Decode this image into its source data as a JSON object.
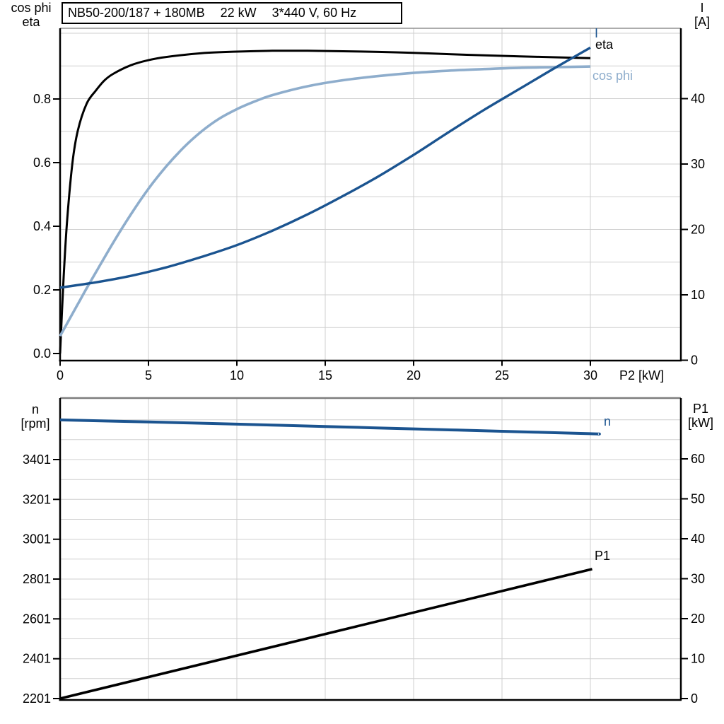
{
  "title": {
    "model": "NB50-200/187 + 180MB",
    "power": "22 kW",
    "supply": "3*440 V, 60 Hz"
  },
  "colors": {
    "black": "#000000",
    "dark_blue": "#1b5490",
    "light_blue": "#8eadcc",
    "grid": "#cfcfcf",
    "axis": "#000000",
    "frame_top": "#858585"
  },
  "chart_data": [
    {
      "type": "line",
      "x_axis": {
        "label": "P2 [kW]",
        "ticks": [
          0,
          5,
          10,
          15,
          20,
          25,
          30
        ],
        "min": 0,
        "max": 35.1,
        "gridline_step": 5
      },
      "left_axis": {
        "label_lines": [
          "cos phi",
          "eta"
        ],
        "ticks": [
          "0.0",
          "0.2",
          "0.4",
          "0.6",
          "0.8"
        ],
        "min": 0,
        "max": 1.02
      },
      "right_axis": {
        "label_lines": [
          "I",
          "[A]"
        ],
        "ticks": [
          0,
          10,
          20,
          30,
          40
        ],
        "min": 0,
        "max": 50.8,
        "gridline_step": 5
      },
      "series": [
        {
          "name": "eta",
          "axis": "left",
          "color_key": "black",
          "x": [
            0,
            0.2,
            0.4,
            0.7,
            1,
            1.5,
            2,
            2.5,
            3,
            4,
            5,
            6,
            8,
            10,
            12,
            14,
            16,
            18,
            20,
            22,
            24,
            26,
            28,
            30
          ],
          "y": [
            0,
            0.24,
            0.42,
            0.6,
            0.7,
            0.785,
            0.825,
            0.858,
            0.879,
            0.906,
            0.922,
            0.932,
            0.944,
            0.949,
            0.9515,
            0.9515,
            0.95,
            0.948,
            0.945,
            0.941,
            0.937,
            0.934,
            0.931,
            0.9285
          ]
        },
        {
          "name": "cos phi",
          "axis": "left",
          "color_key": "light_blue",
          "x": [
            0,
            0.5,
            1,
            1.5,
            2,
            3,
            4,
            5,
            6,
            7,
            8,
            9,
            10,
            11,
            12,
            14,
            16,
            18,
            20,
            22,
            24,
            26,
            28,
            30
          ],
          "y": [
            0.055,
            0.105,
            0.155,
            0.205,
            0.253,
            0.348,
            0.437,
            0.518,
            0.588,
            0.648,
            0.698,
            0.738,
            0.768,
            0.792,
            0.812,
            0.84,
            0.859,
            0.872,
            0.882,
            0.889,
            0.894,
            0.898,
            0.9,
            0.902
          ]
        },
        {
          "name": "I",
          "axis": "right",
          "color_key": "dark_blue",
          "x": [
            0,
            2,
            4,
            6,
            8,
            10,
            12,
            14,
            16,
            18,
            20,
            22,
            24,
            26,
            28,
            30
          ],
          "y": [
            11.1,
            11.9,
            12.9,
            14.2,
            15.8,
            17.6,
            19.8,
            22.3,
            25.1,
            28.1,
            31.4,
            34.9,
            38.3,
            41.5,
            44.7,
            47.8
          ]
        }
      ]
    },
    {
      "type": "line",
      "x_axis": {
        "label": "",
        "ticks": [],
        "min": 0,
        "max": 35.1,
        "gridline_step": 5
      },
      "left_axis": {
        "label_lines": [
          "n",
          "[rpm]"
        ],
        "ticks": [
          3401,
          3201,
          3001,
          2801,
          2601,
          2401,
          2201
        ],
        "min": 2201,
        "max": 3710,
        "gridline_step": 100
      },
      "right_axis": {
        "label_lines": [
          "P1",
          "[kW]"
        ],
        "ticks": [
          60,
          50,
          40,
          30,
          20,
          10,
          0
        ],
        "min": 0,
        "max": 75.2
      },
      "series": [
        {
          "name": "n",
          "axis": "left",
          "color_key": "dark_blue",
          "x": [
            0,
            5,
            10,
            15,
            20,
            25,
            30,
            30.4
          ],
          "y": [
            3600,
            3590,
            3579,
            3567,
            3555,
            3543,
            3531,
            3529
          ]
        },
        {
          "name": "P1",
          "axis": "right",
          "color_key": "black",
          "x": [
            0,
            30.1
          ],
          "y": [
            0,
            32.4
          ]
        }
      ]
    }
  ]
}
